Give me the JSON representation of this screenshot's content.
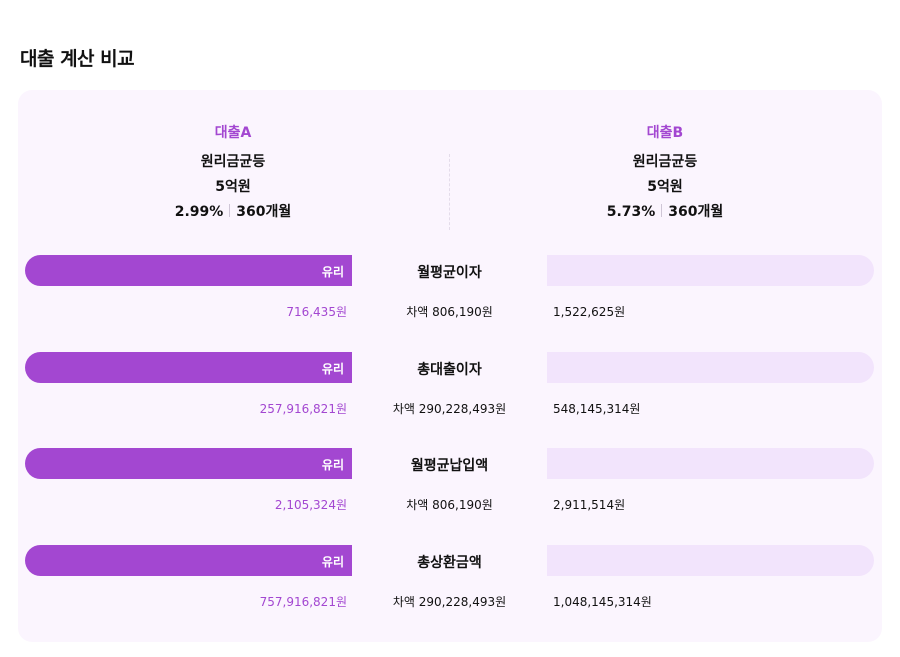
{
  "page": {
    "title": "대출 계산 비교"
  },
  "loans": [
    {
      "name": "대출A",
      "method": "원리금균등",
      "amount": "5억원",
      "rate": "2.99%",
      "term": "360개월"
    },
    {
      "name": "대출B",
      "method": "원리금균등",
      "amount": "5억원",
      "rate": "5.73%",
      "term": "360개월"
    }
  ],
  "badge_label": "유리",
  "metrics": [
    {
      "label": "월평균이자",
      "value_a": "716,435원",
      "diff": "차액 806,190원",
      "value_b": "1,522,625원"
    },
    {
      "label": "총대출이자",
      "value_a": "257,916,821원",
      "diff": "차액 290,228,493원",
      "value_b": "548,145,314원"
    },
    {
      "label": "월평균납입액",
      "value_a": "2,105,324원",
      "diff": "차액 806,190원",
      "value_b": "2,911,514원"
    },
    {
      "label": "총상환금액",
      "value_a": "757,916,821원",
      "diff": "차액 290,228,493원",
      "value_b": "1,048,145,314원"
    }
  ],
  "colors": {
    "accent": "#a347d1",
    "bar_light": "#f2e4fc",
    "card_bg": "#fbf5fe"
  }
}
